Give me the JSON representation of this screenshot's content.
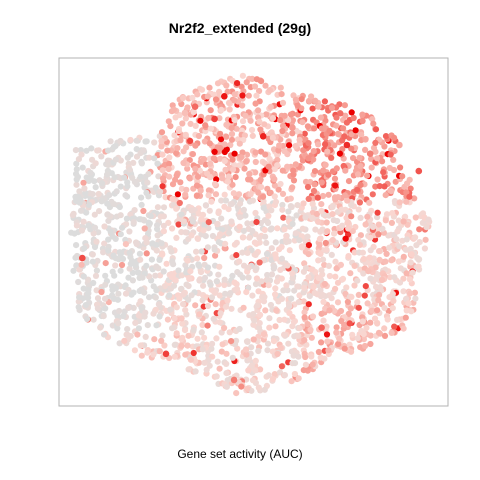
{
  "title": "Nr2f2_extended (29g)",
  "xlabel": "Gene set activity (AUC)",
  "colors": {
    "low": "#dcdcdc",
    "mid": "#fbcfc8",
    "high": "#ff0000",
    "frame": "#b3b3b3"
  },
  "chart_data": {
    "type": "scatter",
    "title": "Nr2f2_extended (29g)",
    "xlabel": "Gene set activity (AUC)",
    "ylabel": "",
    "axes_visible": false,
    "grid": false,
    "legend": "none",
    "color_scale": "AUC (low = grey, high = red)",
    "series": [
      {
        "name": "",
        "points_sample": [
          [
            -0.15,
            0.78,
            0.95
          ],
          [
            0.05,
            0.55,
            0.92
          ],
          [
            -0.2,
            0.65,
            0.85
          ],
          [
            0.48,
            0.5,
            0.9
          ],
          [
            0.85,
            0.35,
            0.8
          ],
          [
            -0.88,
            -0.15,
            0.82
          ],
          [
            -0.45,
            -0.7,
            0.85
          ],
          [
            -0.1,
            -0.85,
            0.7
          ],
          [
            0.35,
            -0.55,
            0.75
          ],
          [
            0.6,
            0.45,
            0.7
          ],
          [
            -0.3,
            0.72,
            0.75
          ],
          [
            0.2,
            0.6,
            0.6
          ],
          [
            0.75,
            0.5,
            0.55
          ],
          [
            -0.75,
            0.1,
            0.1
          ],
          [
            -0.5,
            -0.2,
            0.1
          ]
        ]
      }
    ],
    "xlim": [
      -1,
      1
    ],
    "ylim": [
      -1,
      1
    ]
  }
}
